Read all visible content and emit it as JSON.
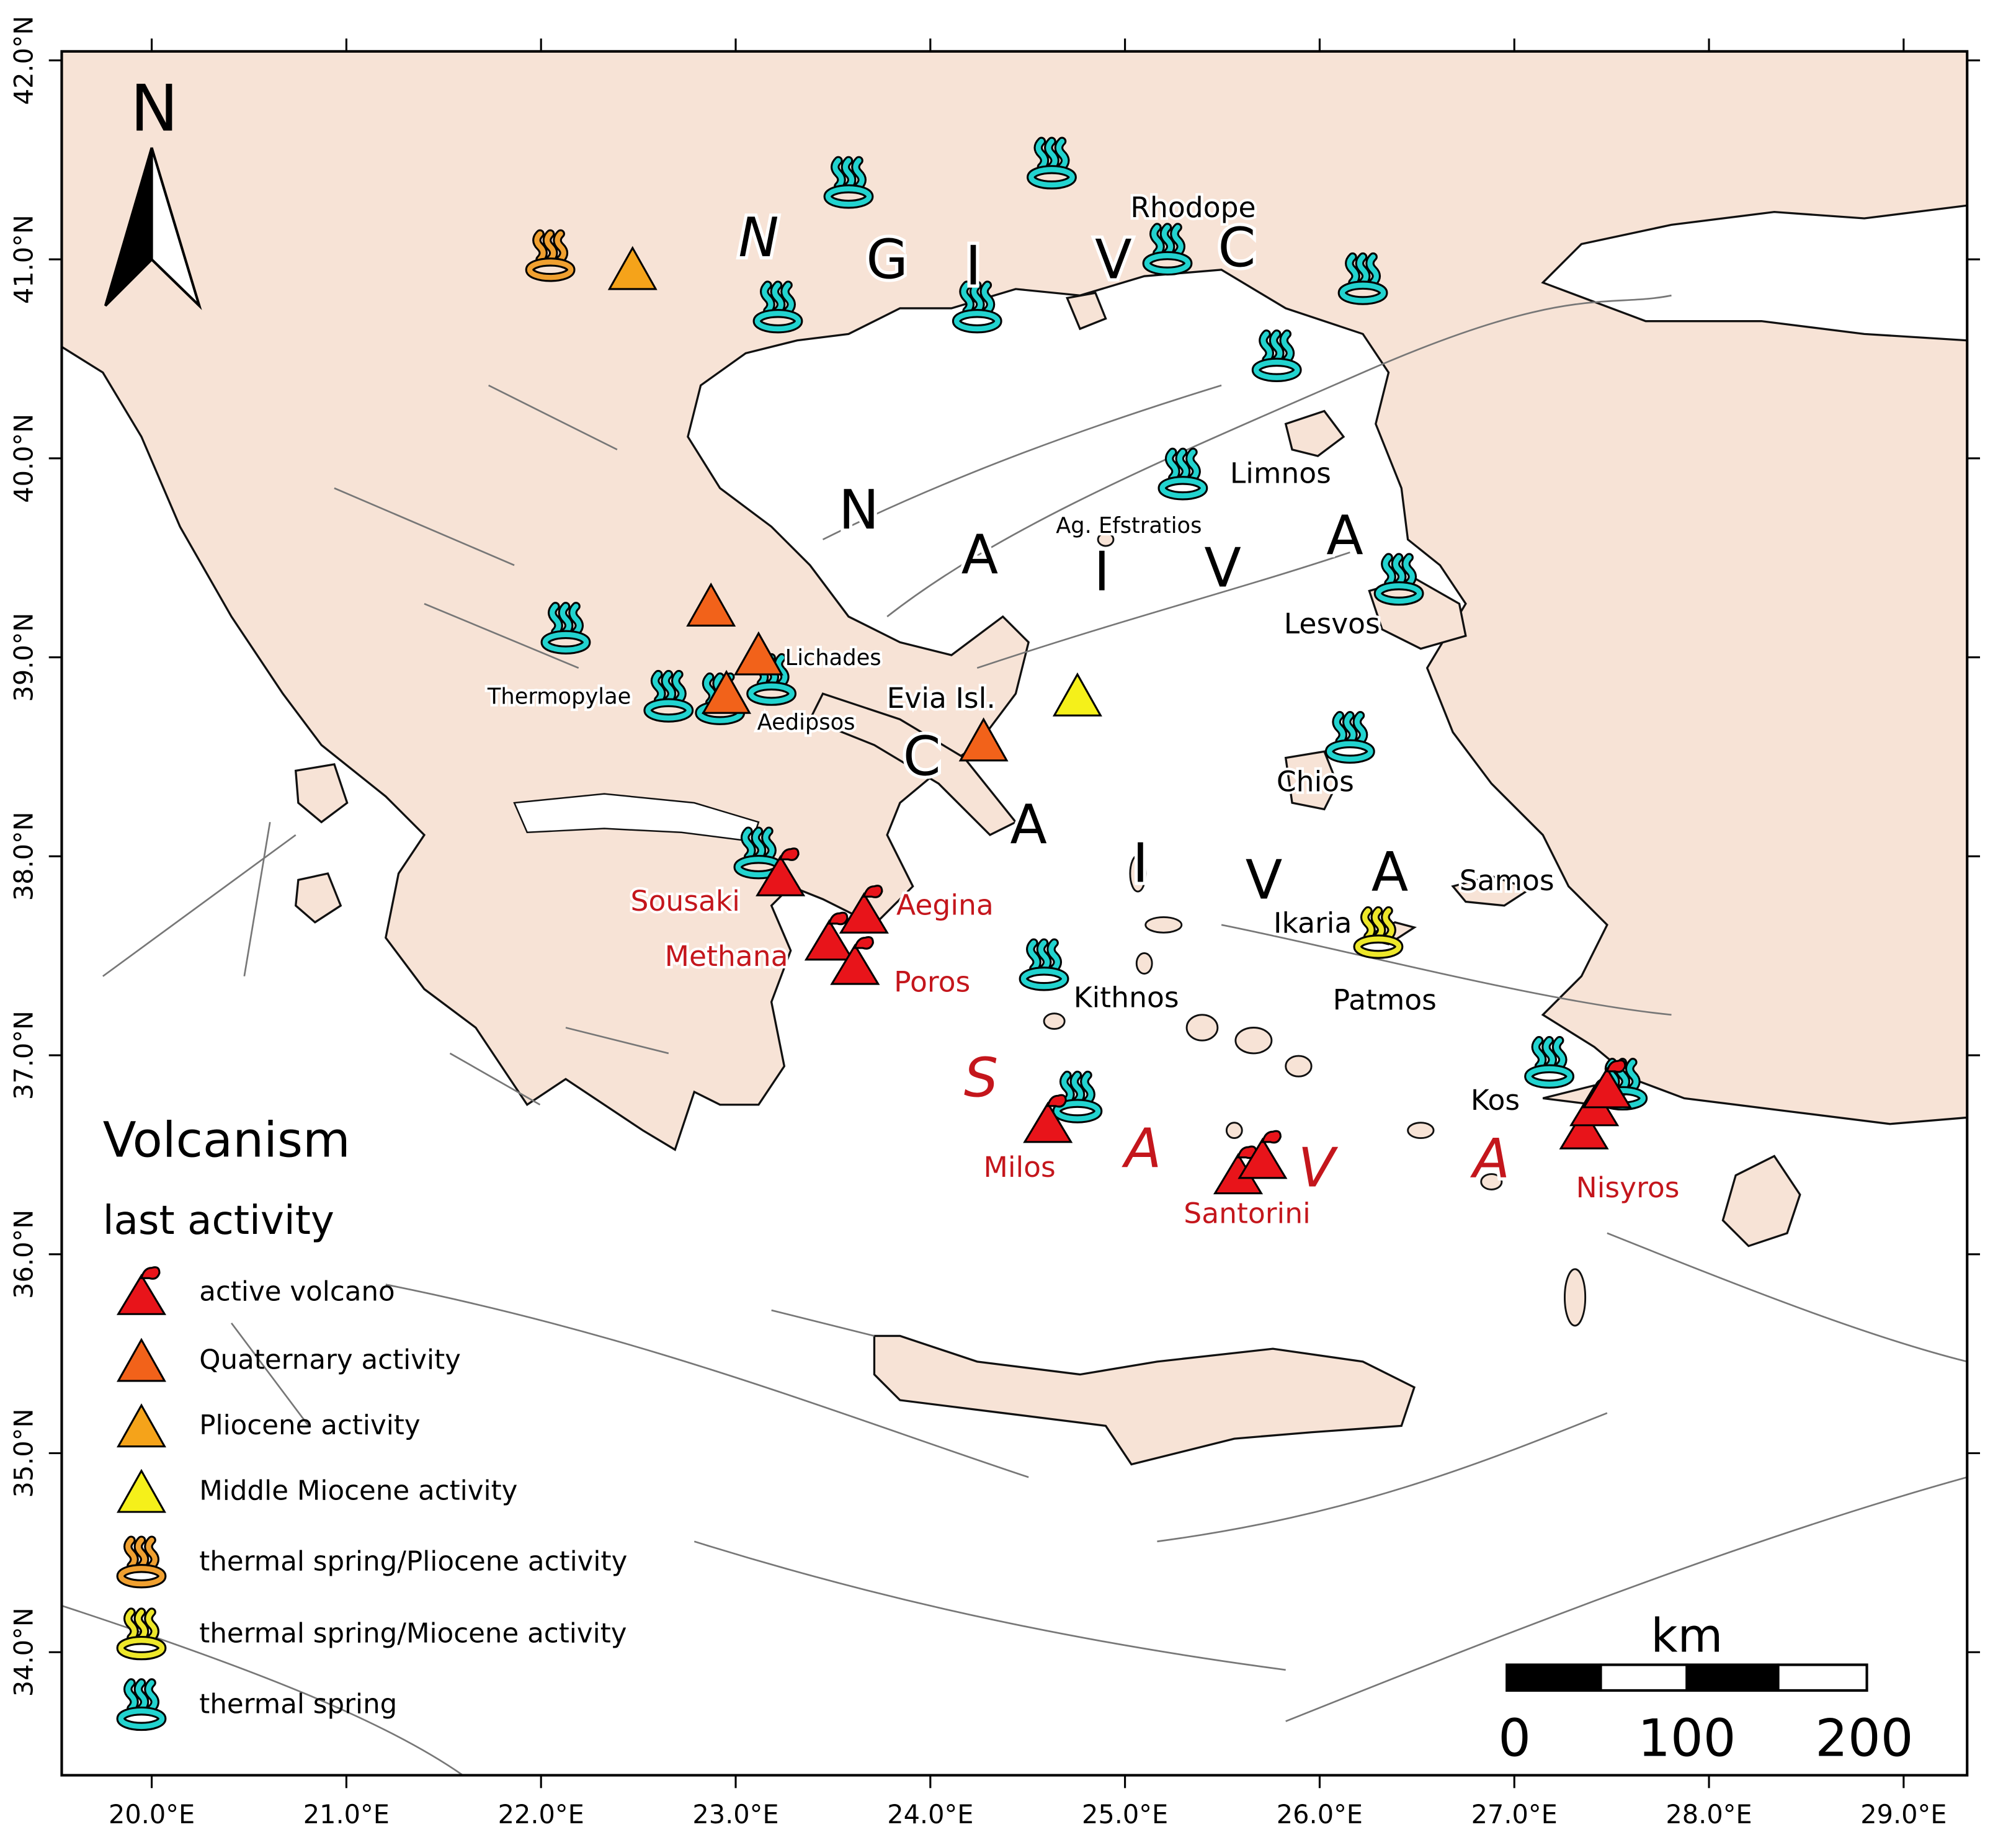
{
  "map": {
    "lon_ticks": [
      {
        "value": 20,
        "label": "20.0°E"
      },
      {
        "value": 21,
        "label": "21.0°E"
      },
      {
        "value": 22,
        "label": "22.0°E"
      },
      {
        "value": 23,
        "label": "23.0°E"
      },
      {
        "value": 24,
        "label": "24.0°E"
      },
      {
        "value": 25,
        "label": "25.0°E"
      },
      {
        "value": 26,
        "label": "26.0°E"
      },
      {
        "value": 27,
        "label": "27.0°E"
      },
      {
        "value": 28,
        "label": "28.0°E"
      },
      {
        "value": 29,
        "label": "29.0°E"
      }
    ],
    "lat_ticks": [
      {
        "value": 34,
        "label": "34.0°N"
      },
      {
        "value": 35,
        "label": "35.0°N"
      },
      {
        "value": 36,
        "label": "36.0°N"
      },
      {
        "value": 37,
        "label": "37.0°N"
      },
      {
        "value": 38,
        "label": "38.0°N"
      },
      {
        "value": 39,
        "label": "39.0°N"
      },
      {
        "value": 40,
        "label": "40.0°N"
      },
      {
        "value": 41,
        "label": "41.0°N"
      },
      {
        "value": 42,
        "label": "42.0°N"
      }
    ],
    "north_arrow": "N",
    "arcs": [
      {
        "letters": [
          "N",
          "G",
          "I",
          "V",
          "C"
        ]
      },
      {
        "letters": [
          "N",
          "A",
          "I",
          "V",
          "A"
        ]
      },
      {
        "letters": [
          "C",
          "A",
          "I",
          "V",
          "A"
        ]
      },
      {
        "letters": [
          "S",
          "A",
          "V",
          "A"
        ]
      }
    ],
    "places": [
      "Rhodope",
      "Limnos",
      "Ag. Efstratios",
      "Lesvos",
      "Lichades",
      "Thermopylae",
      "Evia Isl.",
      "Aedipsos",
      "Chios",
      "Samos",
      "Ikaria",
      "Kithnos",
      "Patmos",
      "Kos"
    ],
    "volcanoes": [
      "Sousaki",
      "Aegina",
      "Methana",
      "Poros",
      "Milos",
      "Santorini",
      "Nisyros"
    ]
  },
  "legend": {
    "title": "Volcanism",
    "subtitle": "last activity",
    "items": [
      "active volcano",
      "Quaternary activity",
      "Pliocene activity",
      "Middle Miocene activity",
      "thermal spring/Pliocene activity",
      "thermal spring/Miocene activity",
      "thermal spring"
    ]
  },
  "scale_bar": {
    "unit": "km",
    "ticks": [
      0,
      100,
      200
    ]
  }
}
